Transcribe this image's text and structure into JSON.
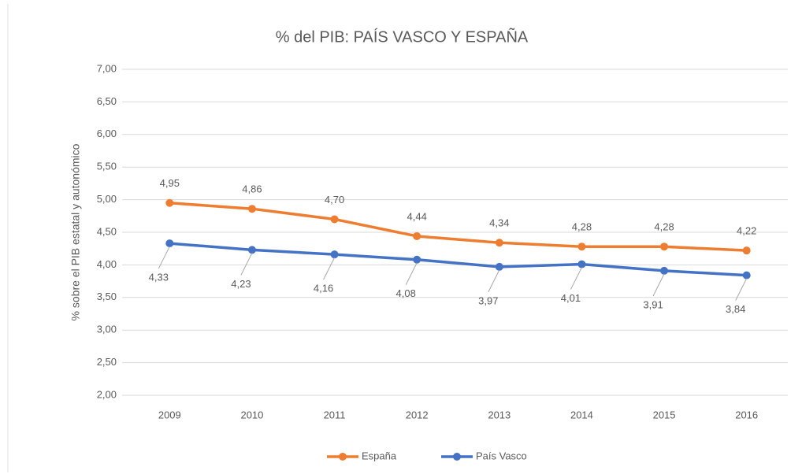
{
  "chart_data": {
    "type": "line",
    "title": "% del PIB: PAÍS VASCO Y ESPAÑA",
    "y_label": "% sobre el PIB estatal y autonómico",
    "categories": [
      "2009",
      "2010",
      "2011",
      "2012",
      "2013",
      "2014",
      "2015",
      "2016"
    ],
    "series": [
      {
        "name": "España",
        "color": "#ed7d31",
        "values": [
          4.95,
          4.86,
          4.7,
          4.44,
          4.34,
          4.28,
          4.28,
          4.22
        ],
        "value_labels": [
          "4,95",
          "4,86",
          "4,70",
          "4,44",
          "4,34",
          "4,28",
          "4,28",
          "4,22"
        ]
      },
      {
        "name": "País Vasco",
        "color": "#4472c4",
        "values": [
          4.33,
          4.23,
          4.16,
          4.08,
          3.97,
          4.01,
          3.91,
          3.84
        ],
        "value_labels": [
          "4,33",
          "4,23",
          "4,16",
          "4,08",
          "3,97",
          "4,01",
          "3,91",
          "3,84"
        ]
      }
    ],
    "ylim": [
      2,
      7
    ],
    "yticks": [
      {
        "value": 2,
        "label": "2,00"
      },
      {
        "value": 2.5,
        "label": "2,50"
      },
      {
        "value": 3,
        "label": "3,00"
      },
      {
        "value": 3.5,
        "label": "3,50"
      },
      {
        "value": 4,
        "label": "4,00"
      },
      {
        "value": 4.5,
        "label": "4,50"
      },
      {
        "value": 5,
        "label": "5,00"
      },
      {
        "value": 5.5,
        "label": "5,50"
      },
      {
        "value": 6,
        "label": "6,00"
      },
      {
        "value": 6.5,
        "label": "6,50"
      },
      {
        "value": 7,
        "label": "7,00"
      }
    ],
    "grid": true,
    "legend": "bottom"
  }
}
